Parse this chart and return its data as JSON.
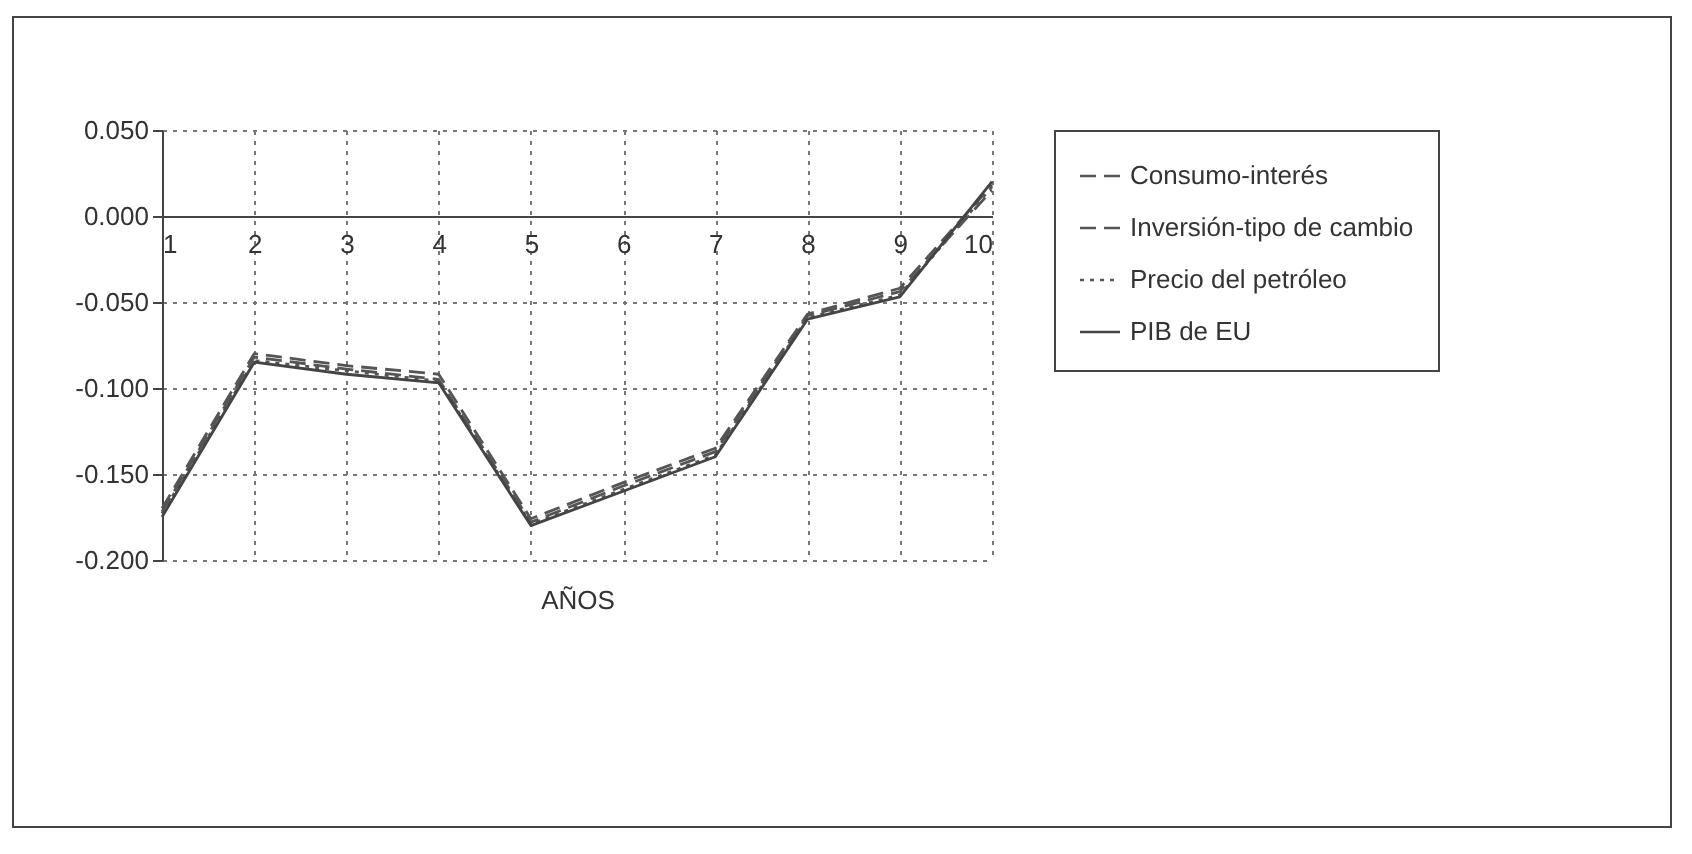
{
  "chart_data": {
    "type": "line",
    "xlabel": "AÑOS",
    "x": [
      1,
      2,
      3,
      4,
      5,
      6,
      7,
      8,
      9,
      10
    ],
    "xlim": [
      1,
      10
    ],
    "xticks": [
      1,
      2,
      3,
      4,
      5,
      6,
      7,
      8,
      9,
      10
    ],
    "ylim": [
      -0.2,
      0.05
    ],
    "yticks": [
      {
        "value": 0.05,
        "label": "0.050"
      },
      {
        "value": 0,
        "label": "0.000"
      },
      {
        "value": -0.05,
        "label": "-0.050"
      },
      {
        "value": -0.1,
        "label": "-0.100"
      },
      {
        "value": -0.15,
        "label": "-0.150"
      },
      {
        "value": -0.2,
        "label": "-0.200"
      }
    ],
    "grid": true,
    "legend": "right",
    "series": [
      {
        "name": "Consumo-interés",
        "color": "#555555",
        "line_style": "dashed",
        "values": [
          -0.172,
          -0.082,
          -0.089,
          -0.095,
          -0.178,
          -0.157,
          -0.137,
          -0.058,
          -0.044,
          0.015
        ]
      },
      {
        "name": "Inversión-tipo de cambio",
        "color": "#555555",
        "line_style": "dashed",
        "values": [
          -0.17,
          -0.08,
          -0.087,
          -0.092,
          -0.176,
          -0.155,
          -0.135,
          -0.057,
          -0.042,
          0.018
        ]
      },
      {
        "name": "Precio del petróleo",
        "color": "#555555",
        "line_style": "dotted",
        "values": [
          -0.173,
          -0.084,
          -0.09,
          -0.096,
          -0.179,
          -0.159,
          -0.139,
          -0.059,
          -0.046,
          0.017
        ]
      },
      {
        "name": "PIB de EU",
        "color": "#444444",
        "line_style": "solid",
        "values": [
          -0.175,
          -0.085,
          -0.092,
          -0.097,
          -0.18,
          -0.16,
          -0.14,
          -0.06,
          -0.047,
          0.02
        ]
      }
    ]
  }
}
